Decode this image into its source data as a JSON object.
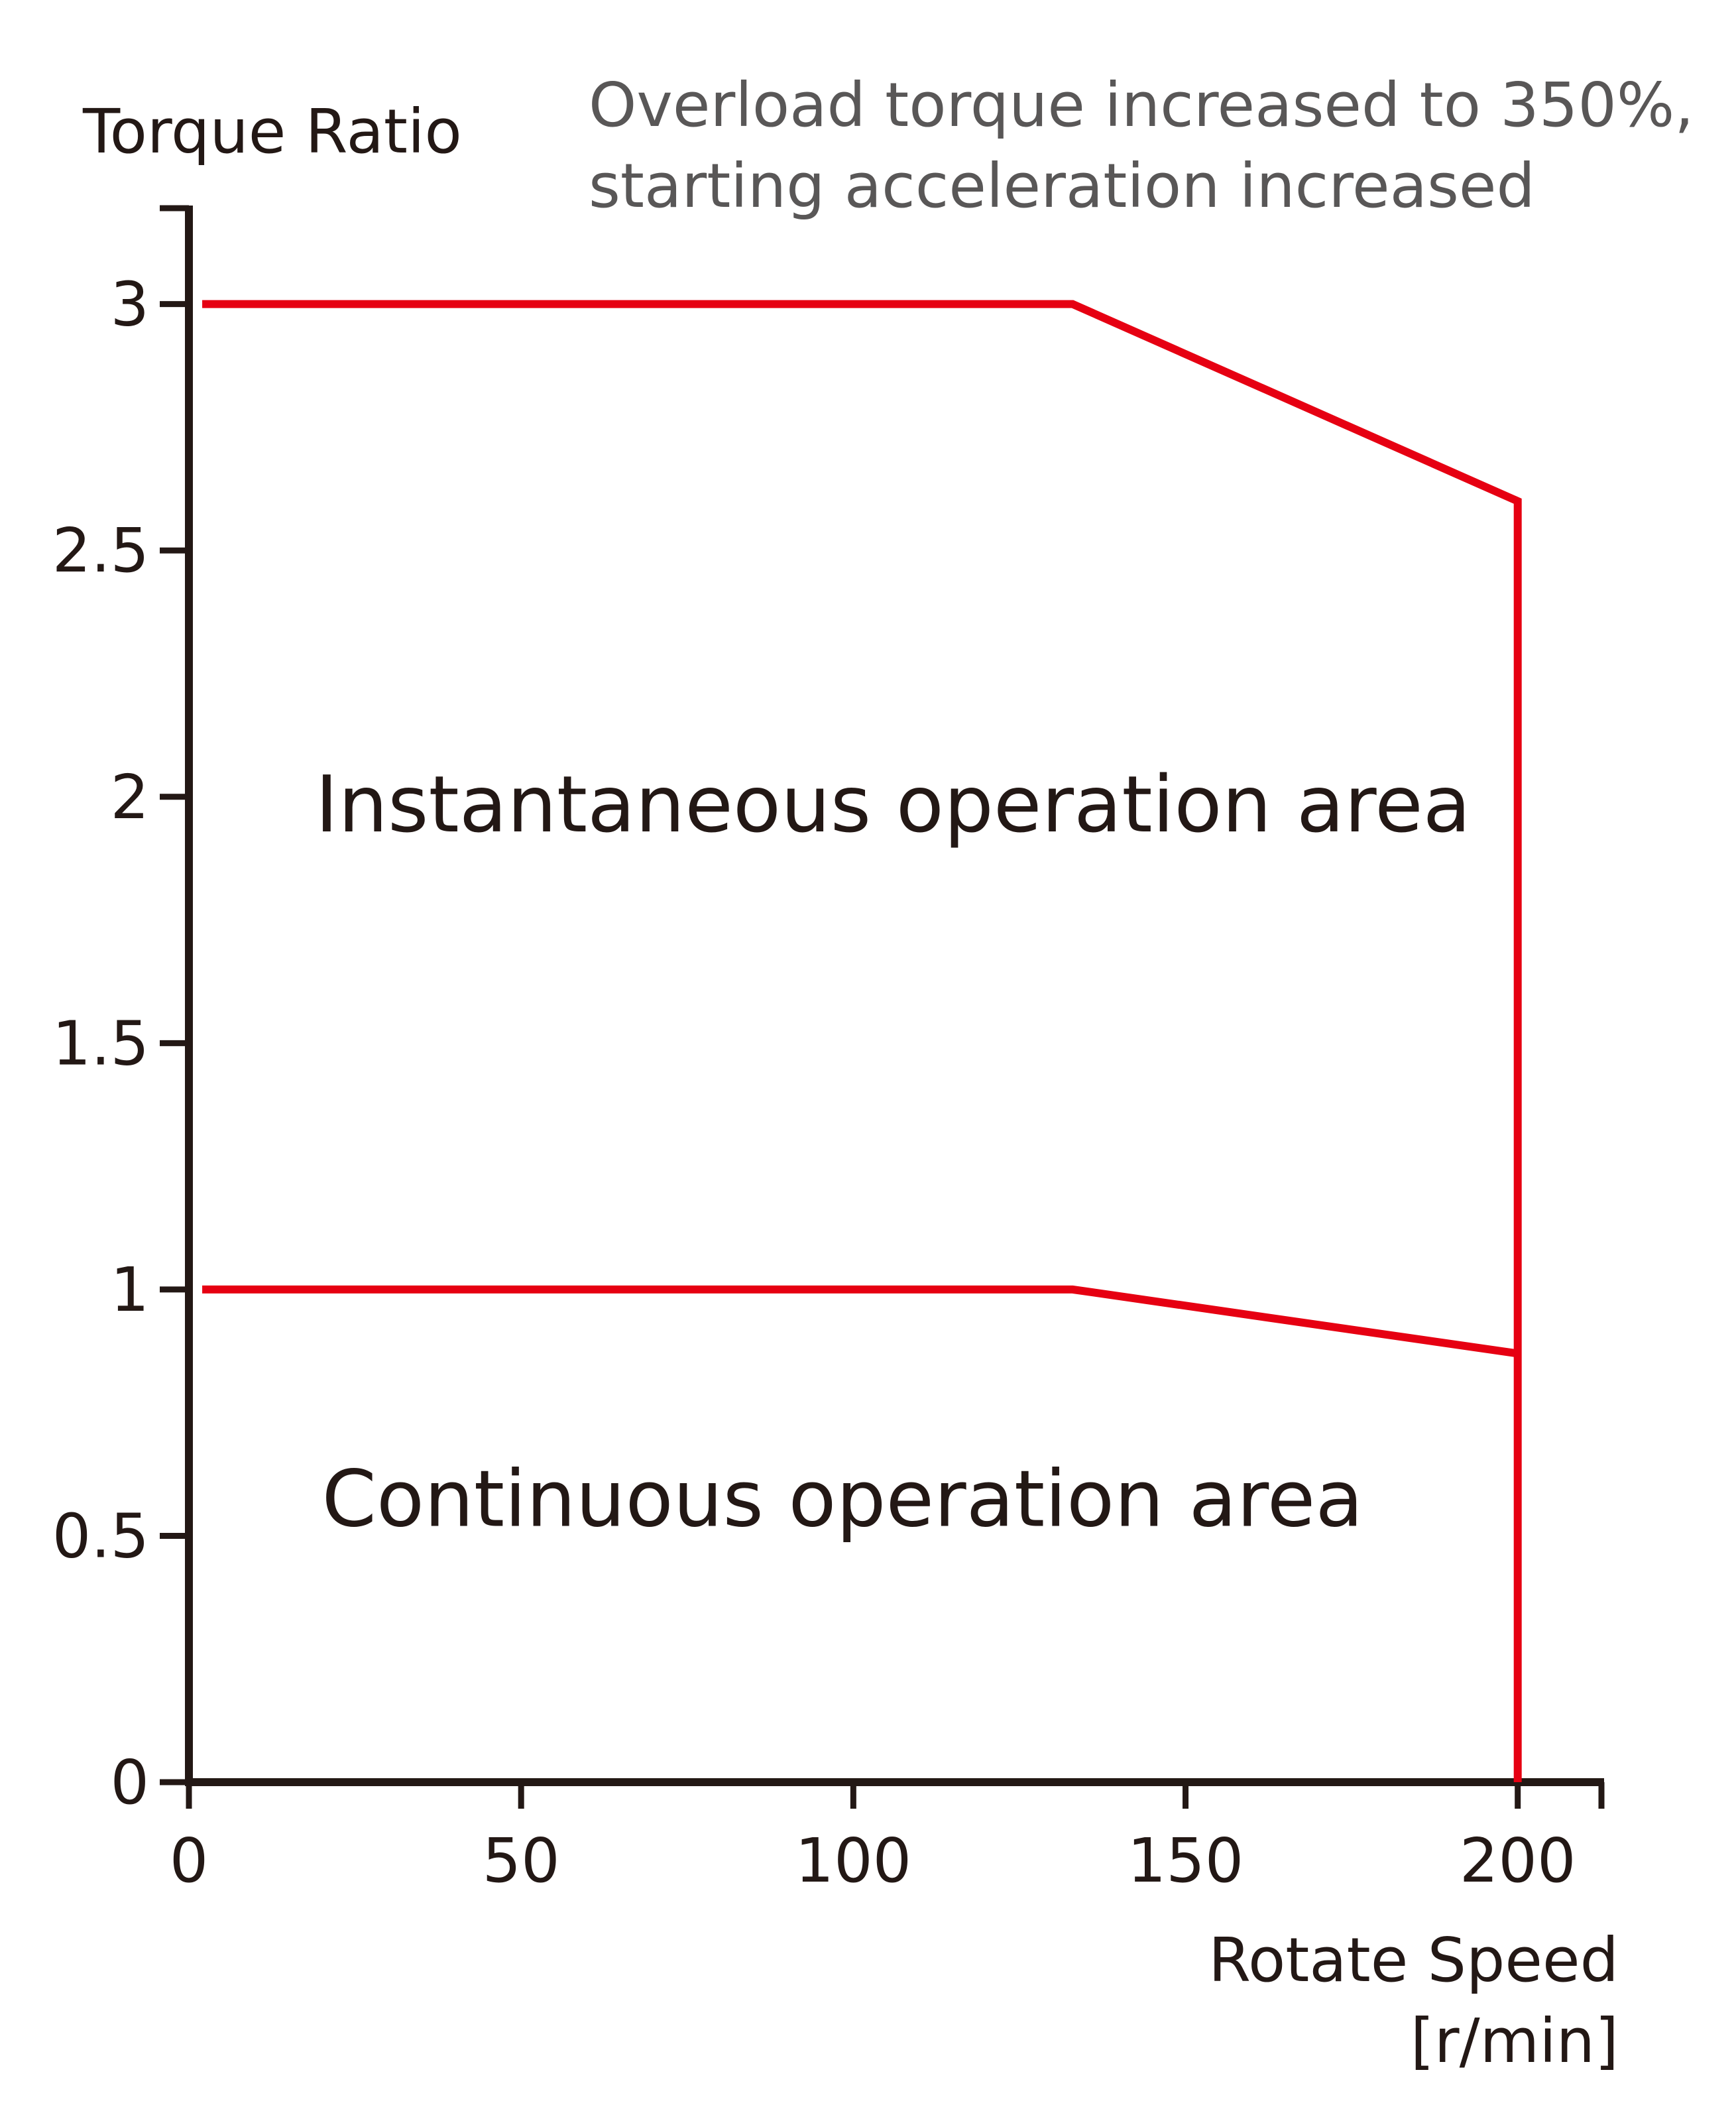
{
  "chart_data": {
    "type": "line",
    "ylabel": "Torque Ratio",
    "xlabel_line1": "Rotate Speed",
    "xlabel_line2": "[r/min]",
    "note_line1": "Overload torque increased to 350%,",
    "note_line2": "starting acceleration increased",
    "xlim": [
      0,
      213
    ],
    "ylim": [
      0,
      3.2
    ],
    "x_ticks": [
      0,
      50,
      100,
      150,
      200
    ],
    "x_tick_labels": [
      "0",
      "50",
      "100",
      "150",
      "200"
    ],
    "y_ticks": [
      0,
      0.5,
      1,
      1.5,
      2,
      2.5,
      3
    ],
    "y_tick_labels": [
      "0",
      "0.5",
      "1",
      "1.5",
      "2",
      "2.5",
      "3"
    ],
    "series": [
      {
        "x": [
          2,
          133,
          200,
          200
        ],
        "y": [
          3,
          3,
          2.6,
          0
        ]
      },
      {
        "x": [
          2,
          133,
          200
        ],
        "y": [
          1,
          1,
          0.87
        ]
      }
    ],
    "annotations": [
      {
        "text": "Instantaneous operation area",
        "x": 19,
        "y": 1.93
      },
      {
        "text": "Continuous operation area",
        "x": 20,
        "y": 0.52
      }
    ],
    "grid": false,
    "line_color": "#e60012",
    "axis_color": "#231815"
  }
}
